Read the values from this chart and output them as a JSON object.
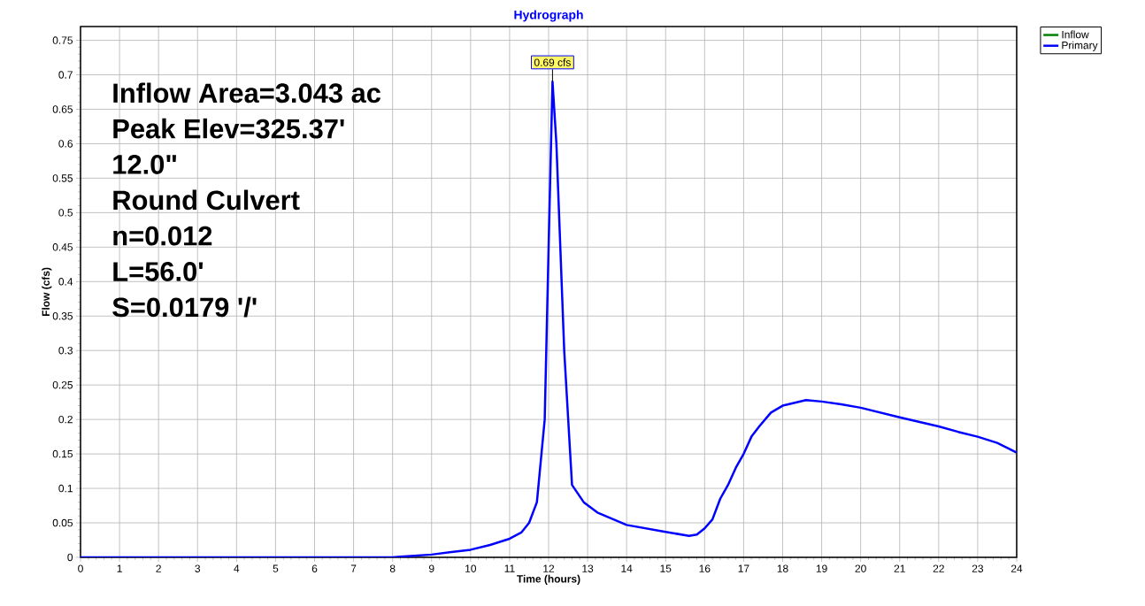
{
  "chart_data": {
    "type": "line",
    "title": "Hydrograph",
    "xlabel": "Time  (hours)",
    "ylabel": "Flow  (cfs)",
    "xlim": [
      0,
      24
    ],
    "xticks": [
      0,
      1,
      2,
      3,
      4,
      5,
      6,
      7,
      8,
      9,
      10,
      11,
      12,
      13,
      14,
      15,
      16,
      17,
      18,
      19,
      20,
      21,
      22,
      23,
      24
    ],
    "ylim": [
      0,
      0.77
    ],
    "yticks": [
      0,
      0.05,
      0.1,
      0.15,
      0.2,
      0.25,
      0.3,
      0.35,
      0.4,
      0.45,
      0.5,
      0.55,
      0.6,
      0.65,
      0.7,
      0.75
    ],
    "grid": true,
    "legend": "top right",
    "marker": "none",
    "line_style": "solid",
    "series": [
      {
        "name": "Inflow",
        "color": "#008000"
      },
      {
        "name": "Primary",
        "color": "#0000ff",
        "x": [
          0,
          8,
          8.2,
          9,
          10,
          10.5,
          11,
          11.3,
          11.5,
          11.7,
          11.9,
          12.0,
          12.1,
          12.2,
          12.4,
          12.6,
          12.9,
          13.25,
          14,
          15,
          15.6,
          15.8,
          16,
          16.2,
          16.4,
          16.6,
          16.8,
          17,
          17.2,
          17.4,
          17.7,
          18,
          18.6,
          19,
          19.5,
          20,
          21,
          22,
          22.5,
          23,
          23.5,
          24
        ],
        "values": [
          0,
          0,
          0.001,
          0.004,
          0.011,
          0.018,
          0.027,
          0.036,
          0.05,
          0.08,
          0.2,
          0.45,
          0.69,
          0.6,
          0.3,
          0.105,
          0.08,
          0.065,
          0.047,
          0.037,
          0.031,
          0.033,
          0.042,
          0.055,
          0.085,
          0.105,
          0.13,
          0.15,
          0.175,
          0.19,
          0.21,
          0.22,
          0.228,
          0.226,
          0.222,
          0.217,
          0.203,
          0.19,
          0.182,
          0.175,
          0.166,
          0.152
        ]
      }
    ],
    "annotations": [
      {
        "text": "0.69 cfs",
        "x": 12.1,
        "y": 0.69
      },
      "Inflow Area=3.043 ac",
      "Peak Elev=325.37'",
      "12.0\"",
      "Round Culvert",
      "n=0.012",
      "L=56.0'",
      "S=0.0179 '/'"
    ]
  }
}
